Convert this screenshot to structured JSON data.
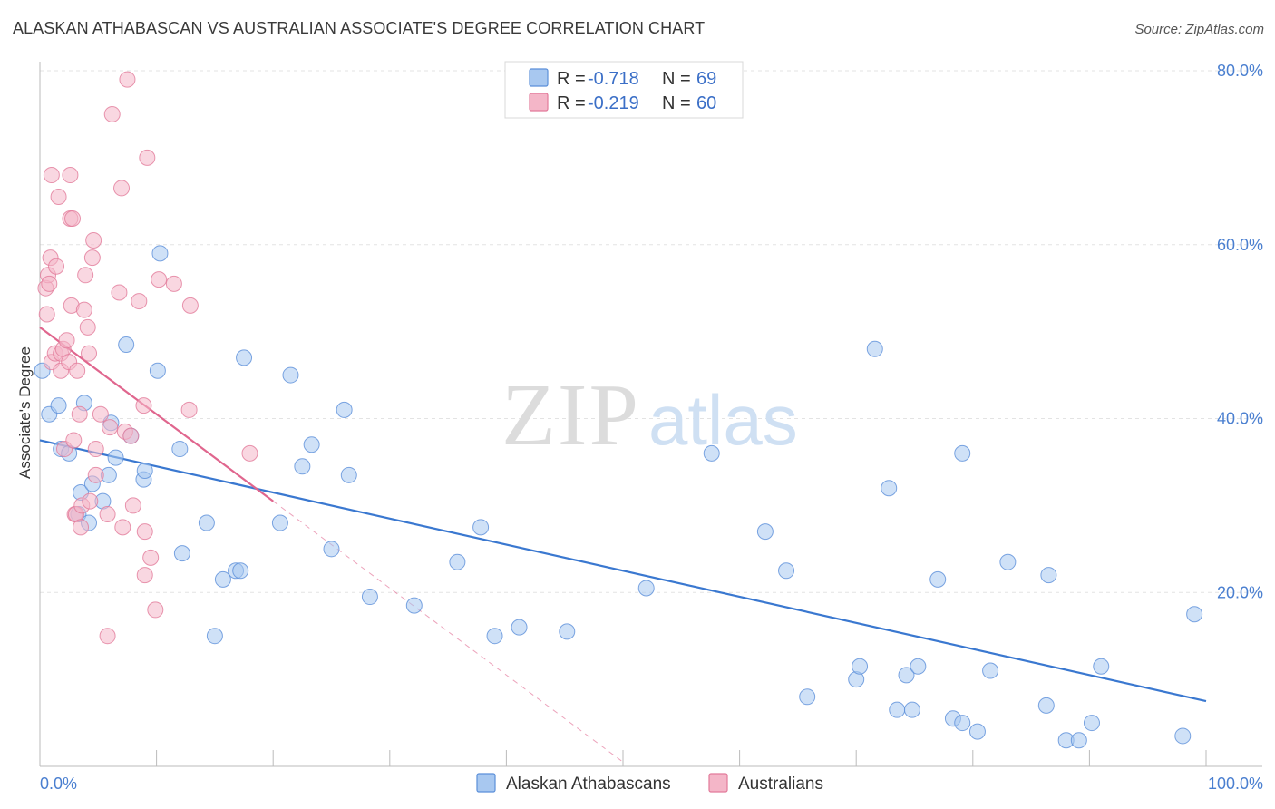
{
  "title": "ALASKAN ATHABASCAN VS AUSTRALIAN ASSOCIATE'S DEGREE CORRELATION CHART",
  "source": "Source: ZipAtlas.com",
  "watermark": {
    "zip": "ZIP",
    "atlas": "atlas"
  },
  "legend": {
    "rows": [
      {
        "r_label": "R = ",
        "r_value": "-0.718",
        "n_label": "N = ",
        "n_value": "69",
        "color": "#a8c8f0"
      },
      {
        "r_label": "R = ",
        "r_value": "-0.219",
        "n_label": "N = ",
        "n_value": "60",
        "color": "#f4b6c8"
      }
    ]
  },
  "bottom_legend": [
    {
      "label": "Alaskan Athabascans",
      "color": "#a8c8f0"
    },
    {
      "label": "Australians",
      "color": "#f4b6c8"
    }
  ],
  "chart_data": {
    "type": "scatter",
    "title": "ALASKAN ATHABASCAN VS AUSTRALIAN ASSOCIATE'S DEGREE CORRELATION CHART",
    "xlabel": "",
    "ylabel": "Associate's Degree",
    "xlim": [
      0,
      100
    ],
    "ylim": [
      0,
      80
    ],
    "x_tick_labels": [
      {
        "value": 0,
        "label": "0.0%"
      },
      {
        "value": 100,
        "label": "100.0%"
      }
    ],
    "y_tick_labels": [
      {
        "value": 20,
        "label": "20.0%"
      },
      {
        "value": 40,
        "label": "40.0%"
      },
      {
        "value": 60,
        "label": "60.0%"
      },
      {
        "value": 80,
        "label": "80.0%"
      }
    ],
    "grid": "horizontal dashed",
    "legend_placement": "top-center",
    "series": [
      {
        "name": "Alaskan Athabascans",
        "color": "#5b8fd9",
        "fill": "#a8c8f0",
        "trend": {
          "x": [
            0,
            100
          ],
          "y": [
            37.5,
            7.5
          ],
          "style": "solid",
          "color": "#3a78d0"
        },
        "points": [
          [
            0.2,
            45.5
          ],
          [
            0.8,
            40.5
          ],
          [
            1.6,
            41.5
          ],
          [
            1.8,
            36.5
          ],
          [
            2.5,
            36.0
          ],
          [
            3.5,
            31.5
          ],
          [
            3.3,
            29.0
          ],
          [
            3.8,
            41.8
          ],
          [
            4.2,
            28.0
          ],
          [
            4.5,
            32.5
          ],
          [
            5.4,
            30.5
          ],
          [
            5.9,
            33.5
          ],
          [
            6.1,
            39.5
          ],
          [
            6.5,
            35.5
          ],
          [
            7.4,
            48.5
          ],
          [
            7.8,
            38.0
          ],
          [
            8.9,
            33.0
          ],
          [
            9.0,
            34.0
          ],
          [
            10.1,
            45.5
          ],
          [
            12.0,
            36.5
          ],
          [
            12.2,
            24.5
          ],
          [
            14.3,
            28.0
          ],
          [
            15.0,
            15.0
          ],
          [
            15.7,
            21.5
          ],
          [
            16.8,
            22.5
          ],
          [
            17.2,
            22.5
          ],
          [
            17.5,
            47.0
          ],
          [
            20.6,
            28.0
          ],
          [
            21.5,
            45.0
          ],
          [
            22.5,
            34.5
          ],
          [
            23.3,
            37.0
          ],
          [
            25.0,
            25.0
          ],
          [
            26.1,
            41.0
          ],
          [
            26.5,
            33.5
          ],
          [
            28.3,
            19.5
          ],
          [
            32.1,
            18.5
          ],
          [
            35.8,
            23.5
          ],
          [
            37.8,
            27.5
          ],
          [
            39.0,
            15.0
          ],
          [
            41.1,
            16.0
          ],
          [
            45.2,
            15.5
          ],
          [
            52.0,
            20.5
          ],
          [
            57.6,
            36.0
          ],
          [
            62.2,
            27.0
          ],
          [
            64.0,
            22.5
          ],
          [
            65.8,
            8.0
          ],
          [
            70.0,
            10.0
          ],
          [
            70.3,
            11.5
          ],
          [
            71.6,
            48.0
          ],
          [
            72.8,
            32.0
          ],
          [
            73.5,
            6.5
          ],
          [
            74.3,
            10.5
          ],
          [
            74.8,
            6.5
          ],
          [
            75.3,
            11.5
          ],
          [
            77.0,
            21.5
          ],
          [
            78.3,
            5.5
          ],
          [
            79.1,
            5.0
          ],
          [
            79.1,
            36.0
          ],
          [
            80.4,
            4.0
          ],
          [
            81.5,
            11.0
          ],
          [
            83.0,
            23.5
          ],
          [
            86.3,
            7.0
          ],
          [
            86.5,
            22.0
          ],
          [
            88.0,
            3.0
          ],
          [
            89.1,
            3.0
          ],
          [
            90.2,
            5.0
          ],
          [
            91.0,
            11.5
          ],
          [
            98.0,
            3.5
          ],
          [
            99.0,
            17.5
          ],
          [
            10.3,
            59.0
          ]
        ]
      },
      {
        "name": "Australians",
        "color": "#e27a9a",
        "fill": "#f4b6c8",
        "trend": {
          "x": [
            0,
            20
          ],
          "y": [
            50.5,
            30.5
          ],
          "style": "solid",
          "color": "#e0668e",
          "extension": {
            "x": [
              20,
              50
            ],
            "y": [
              30.5,
              0.5
            ],
            "style": "dashed"
          }
        },
        "points": [
          [
            0.5,
            55.0
          ],
          [
            0.6,
            52.0
          ],
          [
            0.7,
            56.5
          ],
          [
            0.8,
            55.5
          ],
          [
            0.9,
            58.5
          ],
          [
            1.0,
            68.0
          ],
          [
            1.0,
            46.5
          ],
          [
            1.3,
            47.5
          ],
          [
            1.4,
            57.5
          ],
          [
            1.6,
            65.5
          ],
          [
            1.8,
            45.5
          ],
          [
            1.8,
            47.5
          ],
          [
            2.0,
            48.0
          ],
          [
            2.1,
            36.5
          ],
          [
            2.3,
            49.0
          ],
          [
            2.5,
            46.5
          ],
          [
            2.6,
            63.0
          ],
          [
            2.6,
            68.0
          ],
          [
            2.7,
            53.0
          ],
          [
            2.8,
            63.0
          ],
          [
            2.9,
            37.5
          ],
          [
            3.0,
            29.0
          ],
          [
            3.1,
            29.0
          ],
          [
            3.2,
            45.5
          ],
          [
            3.4,
            40.5
          ],
          [
            3.5,
            27.5
          ],
          [
            3.6,
            30.0
          ],
          [
            3.8,
            52.5
          ],
          [
            3.9,
            56.5
          ],
          [
            4.1,
            50.5
          ],
          [
            4.2,
            47.5
          ],
          [
            4.3,
            30.5
          ],
          [
            4.5,
            58.5
          ],
          [
            4.6,
            60.5
          ],
          [
            4.8,
            36.5
          ],
          [
            4.8,
            33.5
          ],
          [
            5.2,
            40.5
          ],
          [
            5.8,
            15.0
          ],
          [
            5.8,
            29.0
          ],
          [
            6.0,
            39.0
          ],
          [
            6.2,
            75.0
          ],
          [
            6.8,
            54.5
          ],
          [
            7.0,
            66.5
          ],
          [
            7.1,
            27.5
          ],
          [
            7.3,
            38.5
          ],
          [
            7.5,
            79.0
          ],
          [
            7.8,
            38.0
          ],
          [
            8.0,
            30.0
          ],
          [
            8.5,
            53.5
          ],
          [
            8.9,
            41.5
          ],
          [
            9.0,
            22.0
          ],
          [
            9.0,
            27.0
          ],
          [
            9.2,
            70.0
          ],
          [
            9.5,
            24.0
          ],
          [
            9.9,
            18.0
          ],
          [
            10.2,
            56.0
          ],
          [
            11.5,
            55.5
          ],
          [
            12.9,
            53.0
          ],
          [
            12.8,
            41.0
          ],
          [
            18.0,
            36.0
          ]
        ]
      }
    ]
  }
}
